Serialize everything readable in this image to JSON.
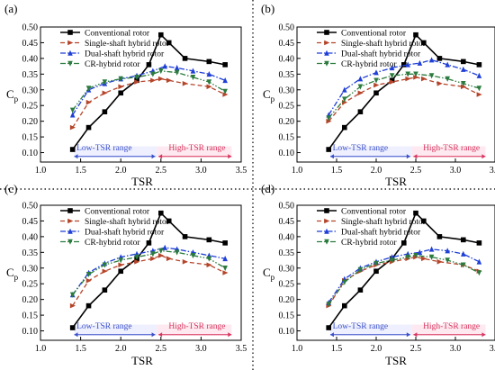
{
  "figure": {
    "xlabel": "TSR",
    "ylabel_main": "C",
    "ylabel_sub": "p",
    "low_range_label": "Low-TSR range",
    "high_range_label": "High-TSR range",
    "colors": {
      "conventional": "#000000",
      "single": "#b5452a",
      "dual": "#1f3fd6",
      "cr": "#2c7b3e",
      "range_fill": "#eef0ff",
      "range_high_fill": "#fde9ef",
      "low_text": "#3a4fc8",
      "high_text": "#d8345f",
      "separator": "#222222"
    }
  },
  "chart_data": [
    {
      "panel": "(a)",
      "type": "line",
      "xlim": [
        1.0,
        3.5
      ],
      "ylim": [
        0.07,
        0.5
      ],
      "xticks": [
        "1.0",
        "1.5",
        "2.0",
        "2.5",
        "3.0",
        "3.5"
      ],
      "yticks": [
        "0.10",
        "0.15",
        "0.20",
        "0.25",
        "0.30",
        "0.35",
        "0.40",
        "0.45",
        "0.50"
      ],
      "grid": false,
      "legend": "top-left",
      "xlabel": "TSR",
      "ylabel": "Cp",
      "series": [
        {
          "name": "Conventional rotor",
          "key": "conventional",
          "marker": "square",
          "x": [
            1.4,
            1.6,
            1.8,
            2.0,
            2.2,
            2.35,
            2.5,
            2.6,
            2.8,
            3.1,
            3.3
          ],
          "y": [
            0.11,
            0.18,
            0.23,
            0.29,
            0.33,
            0.38,
            0.475,
            0.45,
            0.4,
            0.39,
            0.38
          ]
        },
        {
          "name": "Single-shaft hybrid rotor",
          "key": "single",
          "marker": "triangle-right",
          "x": [
            1.4,
            1.6,
            1.8,
            2.0,
            2.2,
            2.4,
            2.5,
            2.6,
            2.8,
            3.1,
            3.3
          ],
          "y": [
            0.18,
            0.26,
            0.29,
            0.31,
            0.325,
            0.33,
            0.335,
            0.33,
            0.32,
            0.31,
            0.285
          ]
        },
        {
          "name": "Dual-shaft hybrid rotor",
          "key": "dual",
          "marker": "triangle-up",
          "x": [
            1.4,
            1.6,
            1.8,
            2.0,
            2.2,
            2.4,
            2.55,
            2.7,
            2.9,
            3.1,
            3.3
          ],
          "y": [
            0.22,
            0.3,
            0.32,
            0.335,
            0.345,
            0.36,
            0.375,
            0.37,
            0.36,
            0.35,
            0.33
          ]
        },
        {
          "name": "CR-hybrid rotor",
          "key": "cr",
          "marker": "triangle-down",
          "x": [
            1.4,
            1.6,
            1.8,
            2.0,
            2.2,
            2.4,
            2.5,
            2.7,
            2.9,
            3.1,
            3.3
          ],
          "y": [
            0.235,
            0.305,
            0.325,
            0.335,
            0.34,
            0.35,
            0.36,
            0.355,
            0.34,
            0.325,
            0.295
          ]
        }
      ]
    },
    {
      "panel": "(b)",
      "type": "line",
      "xlim": [
        1.0,
        3.5
      ],
      "ylim": [
        0.07,
        0.5
      ],
      "xticks": [
        "1.0",
        "1.5",
        "2.0",
        "2.5",
        "3.0",
        "3.5"
      ],
      "yticks": [
        "0.10",
        "0.15",
        "0.20",
        "0.25",
        "0.30",
        "0.35",
        "0.40",
        "0.45",
        "0.50"
      ],
      "grid": false,
      "legend": "top-left",
      "xlabel": "TSR",
      "ylabel": "Cp",
      "series": [
        {
          "name": "Conventional rotor",
          "key": "conventional",
          "marker": "square",
          "x": [
            1.4,
            1.6,
            1.8,
            2.0,
            2.2,
            2.35,
            2.5,
            2.6,
            2.8,
            3.1,
            3.3
          ],
          "y": [
            0.11,
            0.18,
            0.23,
            0.29,
            0.33,
            0.38,
            0.475,
            0.45,
            0.4,
            0.39,
            0.38
          ]
        },
        {
          "name": "Single-shaft hybrid rotor",
          "key": "single",
          "marker": "triangle-right",
          "x": [
            1.4,
            1.6,
            1.8,
            2.0,
            2.2,
            2.4,
            2.5,
            2.6,
            2.8,
            3.1,
            3.3
          ],
          "y": [
            0.2,
            0.26,
            0.29,
            0.315,
            0.325,
            0.335,
            0.34,
            0.335,
            0.32,
            0.31,
            0.285
          ]
        },
        {
          "name": "Dual-shaft hybrid rotor",
          "key": "dual",
          "marker": "triangle-up",
          "x": [
            1.4,
            1.6,
            1.8,
            2.0,
            2.2,
            2.4,
            2.55,
            2.7,
            2.9,
            3.1,
            3.3
          ],
          "y": [
            0.22,
            0.3,
            0.335,
            0.355,
            0.37,
            0.38,
            0.385,
            0.395,
            0.38,
            0.365,
            0.345
          ]
        },
        {
          "name": "CR-hybrid rotor",
          "key": "cr",
          "marker": "triangle-down",
          "x": [
            1.4,
            1.6,
            1.8,
            2.0,
            2.2,
            2.4,
            2.5,
            2.7,
            2.9,
            3.1,
            3.3
          ],
          "y": [
            0.21,
            0.27,
            0.31,
            0.33,
            0.345,
            0.35,
            0.35,
            0.345,
            0.335,
            0.32,
            0.305
          ]
        }
      ]
    },
    {
      "panel": "(c)",
      "type": "line",
      "xlim": [
        1.0,
        3.5
      ],
      "ylim": [
        0.07,
        0.5
      ],
      "xticks": [
        "1.0",
        "1.5",
        "2.0",
        "2.5",
        "3.0",
        "3.5"
      ],
      "yticks": [
        "0.10",
        "0.15",
        "0.20",
        "0.25",
        "0.30",
        "0.35",
        "0.40",
        "0.45",
        "0.50"
      ],
      "grid": false,
      "legend": "top-left",
      "xlabel": "TSR",
      "ylabel": "Cp",
      "series": [
        {
          "name": "Conventional rotor",
          "key": "conventional",
          "marker": "square",
          "x": [
            1.4,
            1.6,
            1.8,
            2.0,
            2.2,
            2.35,
            2.5,
            2.6,
            2.8,
            3.1,
            3.3
          ],
          "y": [
            0.11,
            0.18,
            0.23,
            0.29,
            0.33,
            0.38,
            0.475,
            0.45,
            0.4,
            0.39,
            0.38
          ]
        },
        {
          "name": "Single-shaft hybrid rotor",
          "key": "single",
          "marker": "triangle-right",
          "x": [
            1.4,
            1.6,
            1.8,
            2.0,
            2.2,
            2.4,
            2.5,
            2.6,
            2.8,
            3.1,
            3.3
          ],
          "y": [
            0.18,
            0.26,
            0.29,
            0.31,
            0.32,
            0.33,
            0.34,
            0.33,
            0.32,
            0.31,
            0.285
          ]
        },
        {
          "name": "Dual-shaft hybrid rotor",
          "key": "dual",
          "marker": "triangle-up",
          "x": [
            1.4,
            1.6,
            1.8,
            2.0,
            2.2,
            2.4,
            2.55,
            2.7,
            2.9,
            3.1,
            3.3
          ],
          "y": [
            0.215,
            0.285,
            0.315,
            0.335,
            0.345,
            0.355,
            0.365,
            0.36,
            0.35,
            0.34,
            0.33
          ]
        },
        {
          "name": "CR-hybrid rotor",
          "key": "cr",
          "marker": "triangle-down",
          "x": [
            1.4,
            1.6,
            1.8,
            2.0,
            2.2,
            2.4,
            2.5,
            2.7,
            2.9,
            3.1,
            3.3
          ],
          "y": [
            0.215,
            0.28,
            0.31,
            0.325,
            0.335,
            0.345,
            0.355,
            0.35,
            0.34,
            0.33,
            0.3
          ]
        }
      ]
    },
    {
      "panel": "(d)",
      "type": "line",
      "xlim": [
        1.0,
        3.5
      ],
      "ylim": [
        0.07,
        0.5
      ],
      "xticks": [
        "1.0",
        "1.5",
        "2.0",
        "2.5",
        "3.0",
        "3.5"
      ],
      "yticks": [
        "0.10",
        "0.15",
        "0.20",
        "0.25",
        "0.30",
        "0.35",
        "0.40",
        "0.45",
        "0.50"
      ],
      "grid": false,
      "legend": "top-left",
      "xlabel": "TSR",
      "ylabel": "Cp",
      "series": [
        {
          "name": "Conventional rotor",
          "key": "conventional",
          "marker": "square",
          "x": [
            1.4,
            1.6,
            1.8,
            2.0,
            2.2,
            2.35,
            2.5,
            2.6,
            2.8,
            3.1,
            3.3
          ],
          "y": [
            0.11,
            0.18,
            0.23,
            0.29,
            0.33,
            0.38,
            0.475,
            0.45,
            0.4,
            0.39,
            0.38
          ]
        },
        {
          "name": "Single-shaft hybrid rotor",
          "key": "single",
          "marker": "triangle-right",
          "x": [
            1.4,
            1.6,
            1.8,
            2.0,
            2.2,
            2.4,
            2.5,
            2.6,
            2.8,
            3.1,
            3.3
          ],
          "y": [
            0.18,
            0.26,
            0.29,
            0.31,
            0.32,
            0.33,
            0.335,
            0.33,
            0.32,
            0.31,
            0.29
          ]
        },
        {
          "name": "Dual-shaft hybrid rotor",
          "key": "dual",
          "marker": "triangle-up",
          "x": [
            1.4,
            1.6,
            1.8,
            2.0,
            2.2,
            2.4,
            2.55,
            2.7,
            2.9,
            3.1,
            3.3
          ],
          "y": [
            0.19,
            0.265,
            0.3,
            0.32,
            0.335,
            0.345,
            0.35,
            0.36,
            0.355,
            0.345,
            0.32
          ]
        },
        {
          "name": "CR-hybrid rotor",
          "key": "cr",
          "marker": "triangle-down",
          "x": [
            1.4,
            1.6,
            1.8,
            2.0,
            2.2,
            2.4,
            2.5,
            2.7,
            2.9,
            3.1,
            3.3
          ],
          "y": [
            0.185,
            0.255,
            0.295,
            0.315,
            0.325,
            0.335,
            0.34,
            0.335,
            0.325,
            0.31,
            0.285
          ]
        }
      ]
    }
  ]
}
